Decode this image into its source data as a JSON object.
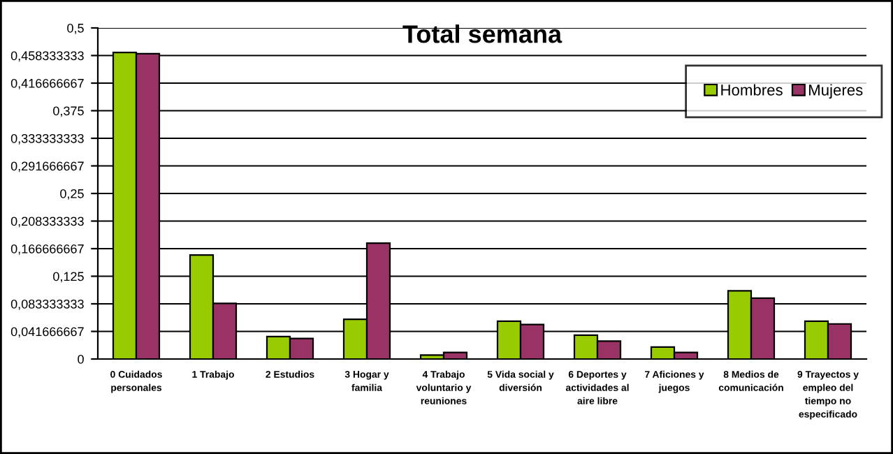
{
  "chart_data": {
    "type": "bar",
    "title": "Total semana",
    "categories": [
      "0 Cuidados\npersonales",
      "1 Trabajo",
      "2 Estudios",
      "3 Hogar y\nfamilia",
      "4 Trabajo\nvoluntario y\nreuniones",
      "5 Vida social y\ndiversión",
      "6 Deportes y\nactividades al\naire libre",
      "7 Aficiones y\njuegos",
      "8 Medios de\ncomunicación",
      "9 Trayectos y\nempleo del\ntiempo no\nespecificado"
    ],
    "series": [
      {
        "name": "Hombres",
        "color": "#99cc00",
        "values": [
          0.463,
          0.157,
          0.034,
          0.06,
          0.006,
          0.057,
          0.036,
          0.018,
          0.103,
          0.057
        ]
      },
      {
        "name": "Mujeres",
        "color": "#993366",
        "values": [
          0.461,
          0.084,
          0.031,
          0.175,
          0.01,
          0.052,
          0.027,
          0.01,
          0.092,
          0.053
        ]
      }
    ],
    "ylim": [
      0,
      0.5
    ],
    "yticks": [
      0,
      {
        "value": 0.041666667,
        "label": "0,041666667"
      },
      {
        "value": 0.083333333,
        "label": "0,083333333"
      },
      {
        "value": 0.125,
        "label": "0,125"
      },
      {
        "value": 0.166666667,
        "label": "0,166666667"
      },
      {
        "value": 0.208333333,
        "label": "0,208333333"
      },
      {
        "value": 0.25,
        "label": "0,25"
      },
      {
        "value": 0.291666667,
        "label": "0,291666667"
      },
      {
        "value": 0.333333333,
        "label": "0,333333333"
      },
      {
        "value": 0.375,
        "label": "0,375"
      },
      {
        "value": 0.416666667,
        "label": "0,416666667"
      },
      {
        "value": 0.458333333,
        "label": "0,458333333"
      },
      {
        "value": 0.5,
        "label": "0,5"
      }
    ],
    "grid": "y",
    "legend": "right"
  }
}
